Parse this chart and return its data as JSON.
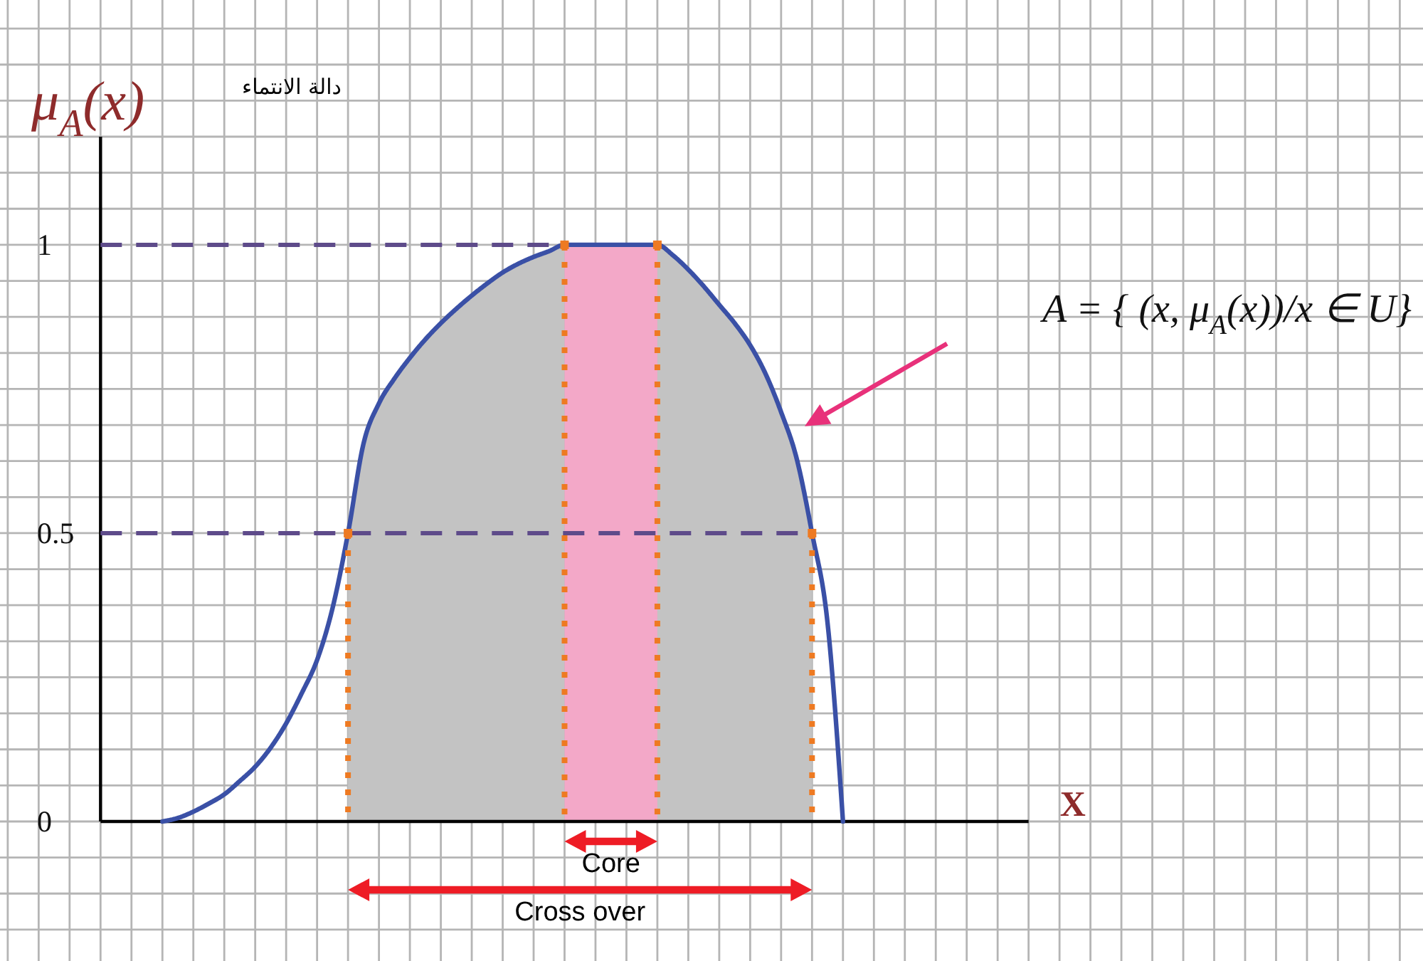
{
  "chart_data": {
    "type": "line",
    "ylabel": "μ$_{A}$(x)",
    "marker": "none",
    "categories": [
      null,
      null,
      null,
      null,
      null,
      null,
      null,
      null,
      null,
      null,
      null,
      null,
      null,
      null,
      null,
      null,
      null,
      null,
      null,
      null,
      null,
      null,
      null,
      null,
      null,
      null,
      null,
      null,
      null,
      null,
      null,
      null,
      null,
      null,
      null,
      null,
      null,
      null,
      null,
      null,
      null,
      null,
      null,
      null,
      null,
      null,
      null,
      null,
      null,
      null,
      null,
      null,
      null,
      null,
      null,
      null,
      null,
      null,
      null,
      null,
      null,
      null,
      null,
      null,
      null,
      null,
      null,
      null,
      null,
      null,
      null,
      null,
      null,
      null,
      null,
      null,
      null,
      null,
      null,
      null,
      null,
      null,
      null,
      null,
      null,
      null,
      null,
      null,
      null,
      null,
      null,
      null
    ],
    "series": [
      {
        "type": "area",
        "name": "Cross over",
        "color": "#c3c3c3",
        "values": [
          null,
          null,
          null,
          null,
          null,
          null,
          null,
          null,
          null,
          null,
          null,
          null,
          null,
          null,
          null,
          null,
          null,
          null,
          null,
          null,
          null,
          null,
          0.5,
          0.655,
          0.725,
          0.768,
          0.804,
          0.836,
          0.864,
          0.889,
          0.912,
          0.933,
          0.952,
          0.967,
          0.979,
          0.989,
          1,
          null,
          null,
          null,
          null,
          null,
          1,
          0.982,
          0.957,
          0.928,
          0.896,
          0.864,
          0.826,
          0.776,
          0.71,
          0.63,
          0.5,
          null,
          null,
          null,
          null,
          null,
          null,
          null,
          null,
          null,
          null,
          null,
          null,
          null,
          null,
          null,
          null,
          null,
          null,
          null,
          null,
          null,
          null,
          null,
          null,
          null,
          null,
          null,
          null,
          null,
          null,
          null,
          null,
          null,
          null,
          null,
          null,
          null,
          null,
          null
        ]
      },
      {
        "type": "area",
        "name": "Core",
        "color": "#f3a8c8",
        "values": [
          null,
          null,
          null,
          null,
          null,
          null,
          null,
          null,
          null,
          null,
          null,
          null,
          null,
          null,
          null,
          null,
          null,
          null,
          null,
          null,
          null,
          null,
          null,
          null,
          null,
          null,
          null,
          null,
          null,
          null,
          null,
          null,
          null,
          null,
          null,
          null,
          1,
          1,
          1,
          1,
          1,
          1,
          1,
          null,
          null,
          null,
          null,
          null,
          null,
          null,
          null,
          null,
          null,
          null,
          null,
          null,
          null,
          null,
          null,
          null,
          null,
          null,
          null,
          null,
          null,
          null,
          null,
          null,
          null,
          null,
          null,
          null,
          null,
          null,
          null,
          null,
          null,
          null,
          null,
          null,
          null,
          null,
          null,
          null,
          null,
          null,
          null,
          null,
          null,
          null,
          null,
          null
        ]
      },
      {
        "type": "line",
        "color": "#5e4b8a",
        "line_style": "dashed",
        "values": [
          null,
          null,
          null,
          null,
          null,
          null,
          1,
          1,
          1,
          1,
          1,
          1,
          1,
          1,
          1,
          1,
          1,
          1,
          1,
          1,
          1,
          1,
          1,
          1,
          1,
          1,
          1,
          1,
          1,
          1,
          1,
          1,
          1,
          1,
          1,
          1,
          1,
          1,
          1,
          1,
          1,
          1,
          1,
          null,
          null,
          null,
          null,
          null,
          null,
          null,
          null,
          null,
          null,
          null,
          null,
          null,
          null,
          null,
          null,
          null,
          null,
          null,
          null,
          null,
          null,
          null,
          null,
          null,
          null,
          null,
          null,
          null,
          null,
          null,
          null,
          null,
          null,
          null,
          null,
          null,
          null,
          null,
          null,
          null,
          null,
          null,
          null,
          null,
          null,
          null,
          null,
          null
        ]
      },
      {
        "type": "line",
        "color": "#5e4b8a",
        "line_style": "dashed",
        "values": [
          null,
          null,
          null,
          null,
          null,
          null,
          0.5,
          0.5,
          0.5,
          0.5,
          0.5,
          0.5,
          0.5,
          0.5,
          0.5,
          0.5,
          0.5,
          0.5,
          0.5,
          0.5,
          0.5,
          0.5,
          0.5,
          0.5,
          0.5,
          0.5,
          0.5,
          0.5,
          0.5,
          0.5,
          0.5,
          0.5,
          0.5,
          0.5,
          0.5,
          0.5,
          0.5,
          0.5,
          0.5,
          0.5,
          0.5,
          0.5,
          0.5,
          0.5,
          0.5,
          0.5,
          0.5,
          0.5,
          0.5,
          0.5,
          0.5,
          0.5,
          0.5,
          null,
          null,
          null,
          null,
          null,
          null,
          null,
          null,
          null,
          null,
          null,
          null,
          null,
          null,
          null,
          null,
          null,
          null,
          null,
          null,
          null,
          null,
          null,
          null,
          null,
          null,
          null,
          null,
          null,
          null,
          null,
          null,
          null,
          null,
          null,
          null,
          null,
          null,
          null
        ]
      },
      {
        "type": "lollipop",
        "color": "#ee7a22",
        "line_style": "dotted",
        "marker": "square",
        "values": [
          null,
          null,
          null,
          null,
          null,
          null,
          null,
          null,
          null,
          null,
          null,
          null,
          null,
          null,
          null,
          null,
          null,
          null,
          null,
          null,
          null,
          null,
          0.5,
          null,
          null,
          null,
          null,
          null,
          null,
          null,
          null,
          null,
          null,
          null,
          null,
          null,
          1,
          null,
          null,
          null,
          null,
          null,
          1,
          null,
          null,
          null,
          null,
          null,
          null,
          null,
          null,
          null,
          0.5,
          null,
          null,
          null,
          null,
          null,
          null,
          null,
          null,
          null,
          null,
          null,
          null,
          null,
          null,
          null,
          null,
          null,
          null,
          null,
          null,
          null,
          null,
          null,
          null,
          null,
          null,
          null,
          null,
          null,
          null,
          null,
          null,
          null,
          null,
          null,
          null,
          null,
          null,
          null
        ]
      },
      {
        "type": "line",
        "color": "#3a50a6",
        "values": [
          null,
          null,
          null,
          null,
          null,
          null,
          null,
          null,
          null,
          null,
          0,
          0.006,
          0.017,
          0.031,
          0.047,
          0.07,
          0.095,
          0.128,
          0.17,
          0.222,
          0.28,
          0.37,
          0.5,
          0.655,
          0.725,
          0.768,
          0.804,
          0.836,
          0.864,
          0.889,
          0.912,
          0.933,
          0.952,
          0.967,
          0.979,
          0.989,
          1,
          1,
          1,
          1,
          1,
          1,
          1,
          0.982,
          0.957,
          0.928,
          0.896,
          0.864,
          0.826,
          0.776,
          0.71,
          0.63,
          0.5,
          0.345,
          0,
          null,
          null,
          null,
          null,
          null,
          null,
          null,
          null,
          null,
          null,
          null,
          null,
          null,
          null,
          null,
          null,
          null,
          null,
          null,
          null,
          null,
          null,
          null,
          null,
          null,
          null,
          null,
          null,
          null,
          null,
          null,
          null,
          null,
          null,
          null,
          null,
          null
        ]
      }
    ],
    "ylim": [
      0,
      1.1875
    ],
    "yticks": [
      0,
      {
        "value": 0.0625,
        "label": null
      },
      {
        "value": 0.125,
        "label": null
      },
      {
        "value": 0.1875,
        "label": null
      },
      {
        "value": 0.25,
        "label": null
      },
      {
        "value": 0.3125,
        "label": null
      },
      {
        "value": 0.375,
        "label": null
      },
      {
        "value": 0.4375,
        "label": null
      },
      0.5,
      {
        "value": 0.5625,
        "label": null
      },
      {
        "value": 0.625,
        "label": null
      },
      {
        "value": 0.6875,
        "label": null
      },
      {
        "value": 0.75,
        "label": null
      },
      {
        "value": 0.8125,
        "label": null
      },
      {
        "value": 0.875,
        "label": null
      },
      {
        "value": 0.9375,
        "label": null
      },
      1,
      {
        "value": 1.0625,
        "label": null
      },
      {
        "value": 1.125,
        "label": null
      },
      {
        "value": 1.1875,
        "label": null
      }
    ],
    "tick_labels": "y",
    "grid": true,
    "annotations": [
      "دالة الانتماء",
      "A = { (x, μ$_{A}$(x))/x ∈ U}",
      "X"
    ]
  }
}
